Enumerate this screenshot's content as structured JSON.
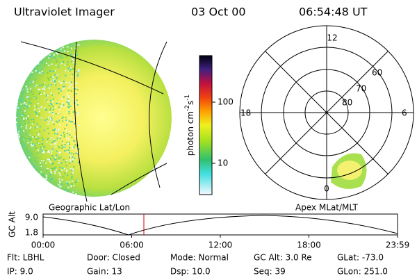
{
  "header": {
    "title": "Ultraviolet Imager",
    "date": "03 Oct 00",
    "time": "06:54:48 UT"
  },
  "colorbar": {
    "label": "photon cm",
    "exp1": "-2",
    "unit2": "s",
    "exp2": "-1",
    "ticks": [
      "100",
      "10"
    ]
  },
  "left_panel": {
    "label": "Geographic Lat/Lon"
  },
  "right_panel": {
    "label": "Apex MLat/MLT",
    "mlt_labels": [
      "12",
      "18",
      "6",
      "0"
    ],
    "lat_labels": [
      "60",
      "70",
      "80"
    ]
  },
  "altitude_plot": {
    "label": "GC Alt",
    "y_labels": [
      "9.0",
      "1.8"
    ],
    "x_labels": [
      "00:00",
      "06:00",
      "12:00",
      "18:00",
      "23:59"
    ]
  },
  "info": [
    [
      "Flt: LBHL",
      "Door: Closed",
      "Mode: Normal",
      "GC Alt: 3.0 Re",
      "GLat: -73.0"
    ],
    [
      "IP: 9.0",
      "Gain: 13",
      "Dsp: 10.0",
      "Seq: 39",
      "GLon: 251.0"
    ]
  ]
}
